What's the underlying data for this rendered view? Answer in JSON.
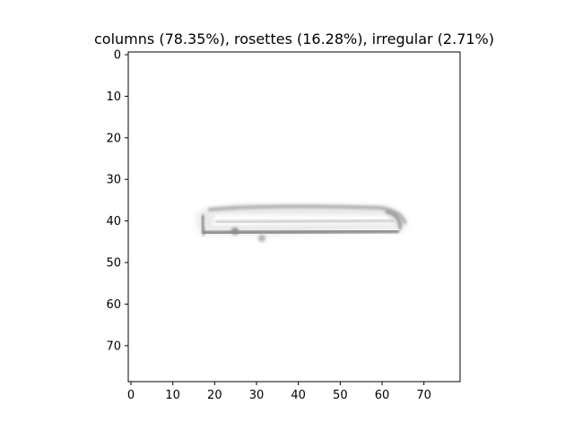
{
  "title": "columns (78.35%), rosettes (16.28%), irregular (2.71%)",
  "image": {
    "extent": [
      0,
      78
    ],
    "object": "elongated column-like ice crystal outline, grayscale",
    "x_ticks": [
      0,
      10,
      20,
      30,
      40,
      50,
      60,
      70
    ],
    "y_ticks": [
      0,
      10,
      20,
      30,
      40,
      50,
      60,
      70
    ]
  }
}
